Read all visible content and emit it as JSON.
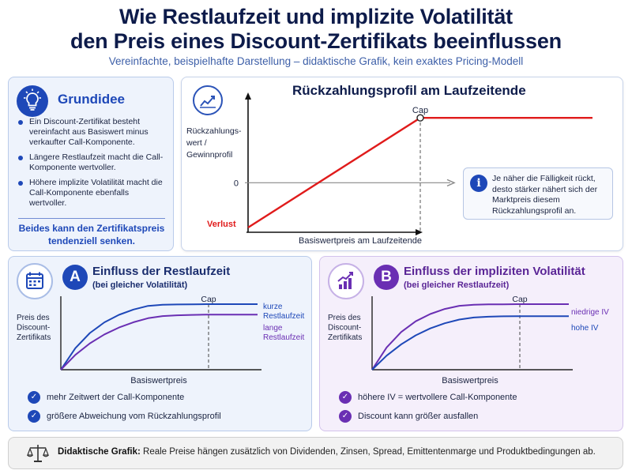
{
  "header": {
    "title_line1": "Wie Restlaufzeit und implizite Volatilität",
    "title_line2": "den Preis eines Discount-Zertifikats beeinflussen",
    "subtitle": "Vereinfachte, beispielhafte Darstellung – didaktische Grafik, kein exaktes Pricing-Modell"
  },
  "idea": {
    "icon": "lightbulb-icon",
    "heading": "Grundidee",
    "bullets": [
      "Ein Discount-Zertifikat besteht vereinfacht aus Basiswert minus verkaufter Call-Komponente.",
      "Längere Restlaufzeit macht die Call-Komponente wertvoller.",
      "Höhere implizite Volatilität macht die Call-Komponente ebenfalls wertvoller."
    ],
    "conclusion": "Beides kann den Zertifikatspreis tendenziell senken."
  },
  "payoff": {
    "icon": "line-chart-icon",
    "info_icon": "info-icon",
    "info_text": "Je näher die Fälligkeit rückt, desto stärker nähert sich der Marktpreis diesem Rückzahlungsprofil an."
  },
  "panel_a": {
    "icon": "calendar-icon",
    "badge": "A",
    "heading": "Einfluss der Restlaufzeit",
    "subheading": "(bei gleicher Volatilität)",
    "checks": [
      "mehr Zeitwert der Call-Komponente",
      "größere Abweichung vom Rückzahlungsprofil"
    ]
  },
  "panel_b": {
    "icon": "bar-chart-up-icon",
    "badge": "B",
    "heading": "Einfluss der impliziten Volatilität",
    "subheading": "(bei gleicher Restlaufzeit)",
    "checks": [
      "höhere IV = wertvollere Call-Komponente",
      "Discount kann größer ausfallen"
    ]
  },
  "footer": {
    "icon": "scales-icon",
    "bold": "Didaktische Grafik:",
    "text": " Reale Preise hängen zusätzlich von Dividenden, Zinsen, Spread,  Emittentenmarge  und  Produktbedingungen ab."
  },
  "chart_data": [
    {
      "type": "line",
      "title": "Rückzahlungsprofil am Laufzeitende",
      "xlabel": "Basiswertpreis am Laufzeitende",
      "ylabel": "Rückzahlungs-\nwert /\nGewinnprofil",
      "y_tick_label": "0",
      "loss_label": "Verlust",
      "cap_label": "Cap",
      "x": [
        0,
        50,
        100
      ],
      "series": [
        {
          "values": [
            -20,
            29,
            29
          ],
          "color": "#e01b1b"
        }
      ],
      "xlim": [
        0,
        100
      ],
      "ylim": [
        -20,
        40
      ],
      "grid": false,
      "colors": {
        "line": "#e01b1b",
        "axis": "#111111",
        "zero": "#888888"
      }
    },
    {
      "type": "line",
      "xlabel": "Basiswertpreis",
      "ylabel": "Preis des\nDiscount-\nZertifikats",
      "cap_label": "Cap",
      "x": [
        0,
        10,
        20,
        30,
        40,
        50,
        60,
        70,
        80,
        90,
        100
      ],
      "series": [
        {
          "name": "kurze\nRestlaufzeit",
          "values": [
            0,
            32.9,
            56.0,
            72.3,
            83.7,
            91.8,
            97.3,
            99.0,
            99.5,
            99.8,
            100
          ],
          "color": "#1e48b8"
        },
        {
          "name": "lange\nRestlaufzeit",
          "values": [
            0,
            22.7,
            40.2,
            53.9,
            64.3,
            72.4,
            78.5,
            81.8,
            83.0,
            83.6,
            84
          ],
          "color": "#6a2fb3"
        }
      ],
      "xlim": [
        0,
        100
      ],
      "ylim": [
        0,
        100
      ],
      "grid": false
    },
    {
      "type": "line",
      "xlabel": "Basiswertpreis",
      "ylabel": "Preis des\nDiscount-\nZertifikats",
      "cap_label": "Cap",
      "x": [
        0,
        10,
        20,
        30,
        40,
        50,
        60,
        70,
        80,
        90,
        100
      ],
      "series": [
        {
          "name": "niedrige IV",
          "values": [
            0,
            34.0,
            57.5,
            73.8,
            85.0,
            92.6,
            97.5,
            99.1,
            99.6,
            99.8,
            100
          ],
          "color": "#6a2fb3"
        },
        {
          "name": "hohe IV",
          "values": [
            0,
            21.4,
            38.7,
            52.4,
            63.0,
            70.8,
            76.5,
            79.6,
            80.8,
            81.4,
            81.6
          ],
          "color": "#1e48b8"
        }
      ],
      "xlim": [
        0,
        100
      ],
      "ylim": [
        0,
        100
      ],
      "grid": false
    }
  ]
}
